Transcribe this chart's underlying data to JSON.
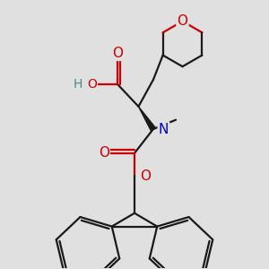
{
  "bg_color": "#e0e0e0",
  "bond_color": "#1a1a1a",
  "oxygen_color": "#cc0000",
  "nitrogen_color": "#0000cc",
  "hydrogen_color": "#4a8a8a",
  "line_width": 1.6,
  "figsize": [
    3.0,
    3.0
  ],
  "dpi": 100,
  "xlim": [
    0,
    10
  ],
  "ylim": [
    0,
    10
  ]
}
